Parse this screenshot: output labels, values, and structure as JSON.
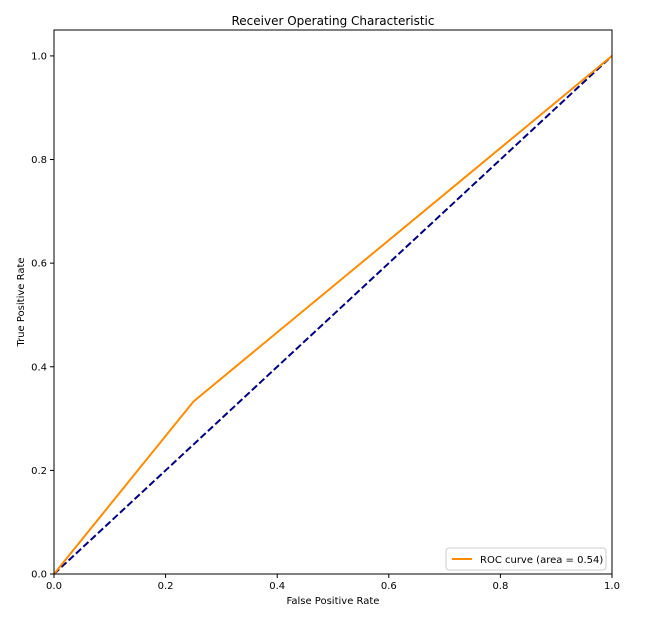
{
  "chart_data": {
    "type": "line",
    "title": "Receiver Operating Characteristic",
    "xlabel": "False Positive Rate",
    "ylabel": "True Positive Rate",
    "xlim": [
      0.0,
      1.0
    ],
    "ylim": [
      0.0,
      1.05
    ],
    "xticks": [
      0.0,
      0.2,
      0.4,
      0.6,
      0.8,
      1.0
    ],
    "yticks": [
      0.0,
      0.2,
      0.4,
      0.6,
      0.8,
      1.0
    ],
    "xtick_labels": [
      "0.0",
      "0.2",
      "0.4",
      "0.6",
      "0.8",
      "1.0"
    ],
    "ytick_labels": [
      "0.0",
      "0.2",
      "0.4",
      "0.6",
      "0.8",
      "1.0"
    ],
    "grid": false,
    "legend_position": "lower-right",
    "series": [
      {
        "name": "ROC curve (area = 0.54)",
        "x": [
          0.0,
          0.25,
          1.0
        ],
        "y": [
          0.0,
          0.333,
          1.0
        ],
        "color": "#ff8c00",
        "style": "solid"
      },
      {
        "x": [
          0.0,
          1.0
        ],
        "y": [
          0.0,
          1.0
        ],
        "color": "#000080",
        "style": "dashed"
      }
    ]
  }
}
